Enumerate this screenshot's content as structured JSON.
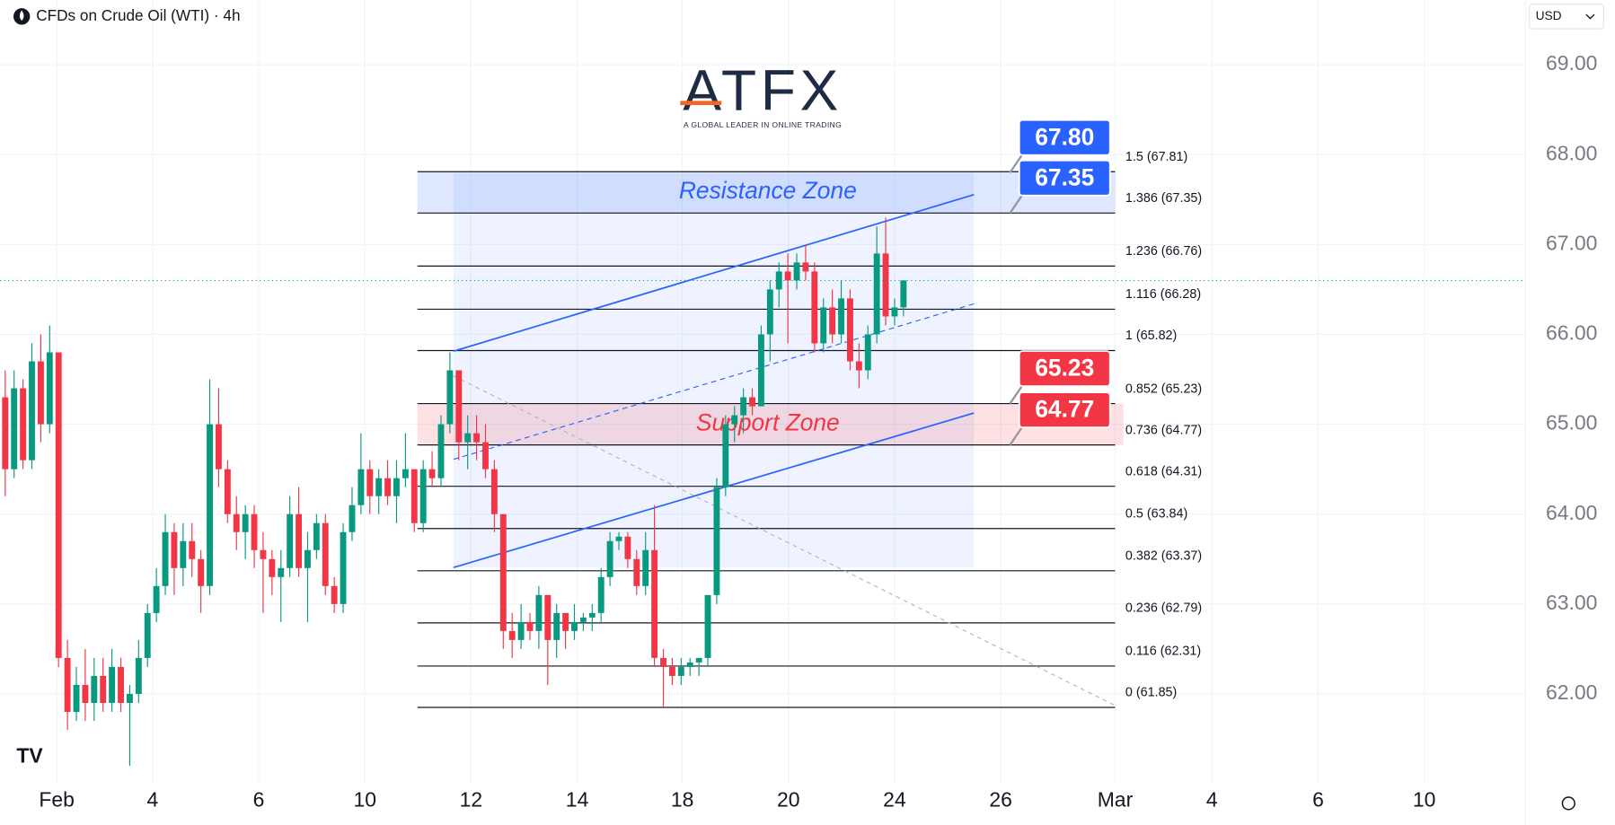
{
  "chart_data": {
    "type": "candlestick",
    "title": "CFDs on Crude Oil (WTI) · 4h",
    "currency": "USD",
    "logo": {
      "brand": "ATFX",
      "tagline": "A GLOBAL LEADER IN ONLINE TRADING"
    },
    "up_color": "#089981",
    "down_color": "#f23645",
    "ylim": [
      61.0,
      69.72
    ],
    "yticks": [
      {
        "value": 62,
        "label": "62.00"
      },
      {
        "value": 63,
        "label": "63.00"
      },
      {
        "value": 64,
        "label": "64.00"
      },
      {
        "value": 65,
        "label": "65.00"
      },
      {
        "value": 66,
        "label": "66.00"
      },
      {
        "value": 67,
        "label": "67.00"
      },
      {
        "value": 68,
        "label": "68.00"
      },
      {
        "value": 69,
        "label": "69.00"
      }
    ],
    "categories": [
      "Feb",
      "4",
      "6",
      "10",
      "12",
      "14",
      "18",
      "20",
      "24",
      "26",
      "Mar",
      "4",
      "6",
      "10"
    ],
    "grid": true,
    "ohlc": [
      [
        65.3,
        65.6,
        64.2,
        64.5
      ],
      [
        64.5,
        65.6,
        64.4,
        65.4
      ],
      [
        65.4,
        65.5,
        64.5,
        64.6
      ],
      [
        64.6,
        65.9,
        64.5,
        65.7
      ],
      [
        65.7,
        66.0,
        64.8,
        65.0
      ],
      [
        65.0,
        66.1,
        64.9,
        65.8
      ],
      [
        65.8,
        65.8,
        62.3,
        62.4
      ],
      [
        62.4,
        62.6,
        61.6,
        61.8
      ],
      [
        61.8,
        62.3,
        61.7,
        62.1
      ],
      [
        62.1,
        62.5,
        61.7,
        61.9
      ],
      [
        61.9,
        62.4,
        61.7,
        62.2
      ],
      [
        62.2,
        62.4,
        61.8,
        61.9
      ],
      [
        61.9,
        62.5,
        61.8,
        62.3
      ],
      [
        62.3,
        62.4,
        61.8,
        61.9
      ],
      [
        61.9,
        62.1,
        61.2,
        62.0
      ],
      [
        62.0,
        62.6,
        61.9,
        62.4
      ],
      [
        62.4,
        63.0,
        62.3,
        62.9
      ],
      [
        62.9,
        63.4,
        62.8,
        63.2
      ],
      [
        63.2,
        64.0,
        63.1,
        63.8
      ],
      [
        63.8,
        63.9,
        63.1,
        63.4
      ],
      [
        63.4,
        63.9,
        63.2,
        63.7
      ],
      [
        63.7,
        63.9,
        63.3,
        63.5
      ],
      [
        63.5,
        63.6,
        62.9,
        63.2
      ],
      [
        63.2,
        65.5,
        63.1,
        65.0
      ],
      [
        65.0,
        65.4,
        64.3,
        64.5
      ],
      [
        64.5,
        64.6,
        63.9,
        64.0
      ],
      [
        64.0,
        64.2,
        63.6,
        63.8
      ],
      [
        63.8,
        64.1,
        63.5,
        64.0
      ],
      [
        64.0,
        64.1,
        63.4,
        63.6
      ],
      [
        63.6,
        63.8,
        62.9,
        63.5
      ],
      [
        63.5,
        63.6,
        63.1,
        63.3
      ],
      [
        63.3,
        63.6,
        62.8,
        63.4
      ],
      [
        63.4,
        64.2,
        63.3,
        64.0
      ],
      [
        64.0,
        64.3,
        63.3,
        63.4
      ],
      [
        63.4,
        63.8,
        62.8,
        63.6
      ],
      [
        63.6,
        64.0,
        63.5,
        63.9
      ],
      [
        63.9,
        64.0,
        63.1,
        63.2
      ],
      [
        63.2,
        63.3,
        62.9,
        63.0
      ],
      [
        63.0,
        63.9,
        62.9,
        63.8
      ],
      [
        63.8,
        64.3,
        63.7,
        64.1
      ],
      [
        64.1,
        64.9,
        64.0,
        64.5
      ],
      [
        64.5,
        64.6,
        64.0,
        64.2
      ],
      [
        64.2,
        64.5,
        64.0,
        64.4
      ],
      [
        64.4,
        64.6,
        64.1,
        64.2
      ],
      [
        64.2,
        64.6,
        63.9,
        64.4
      ],
      [
        64.4,
        64.9,
        64.3,
        64.5
      ],
      [
        64.5,
        64.5,
        63.8,
        63.9
      ],
      [
        63.9,
        64.6,
        63.8,
        64.5
      ],
      [
        64.5,
        64.7,
        64.3,
        64.4
      ],
      [
        64.4,
        65.1,
        64.3,
        65.0
      ],
      [
        65.0,
        65.8,
        64.9,
        65.6
      ],
      [
        65.6,
        65.6,
        64.6,
        64.8
      ],
      [
        64.8,
        65.1,
        64.5,
        64.9
      ],
      [
        64.9,
        65.1,
        64.6,
        64.8
      ],
      [
        64.8,
        65.0,
        64.4,
        64.5
      ],
      [
        64.5,
        64.6,
        63.8,
        64.0
      ],
      [
        64.0,
        64.0,
        62.5,
        62.7
      ],
      [
        62.7,
        62.9,
        62.4,
        62.6
      ],
      [
        62.6,
        63.0,
        62.5,
        62.8
      ],
      [
        62.8,
        62.9,
        62.6,
        62.7
      ],
      [
        62.7,
        63.2,
        62.5,
        63.1
      ],
      [
        63.1,
        63.1,
        62.1,
        62.6
      ],
      [
        62.6,
        63.0,
        62.4,
        62.9
      ],
      [
        62.9,
        62.9,
        62.5,
        62.7
      ],
      [
        62.7,
        63.0,
        62.6,
        62.8
      ],
      [
        62.8,
        62.9,
        62.7,
        62.85
      ],
      [
        62.85,
        63.0,
        62.7,
        62.9
      ],
      [
        62.9,
        63.4,
        62.8,
        63.3
      ],
      [
        63.3,
        63.8,
        63.2,
        63.7
      ],
      [
        63.7,
        63.8,
        63.6,
        63.75
      ],
      [
        63.75,
        63.8,
        63.4,
        63.5
      ],
      [
        63.5,
        63.6,
        63.1,
        63.2
      ],
      [
        63.2,
        63.8,
        63.1,
        63.6
      ],
      [
        63.6,
        64.1,
        62.3,
        62.4
      ],
      [
        62.4,
        62.5,
        61.85,
        62.3
      ],
      [
        62.3,
        62.4,
        62.1,
        62.2
      ],
      [
        62.2,
        62.4,
        62.1,
        62.3
      ],
      [
        62.3,
        62.4,
        62.2,
        62.35
      ],
      [
        62.35,
        62.4,
        62.2,
        62.4
      ],
      [
        62.4,
        63.1,
        62.3,
        63.1
      ],
      [
        63.1,
        64.4,
        63.0,
        64.3
      ],
      [
        64.3,
        65.1,
        64.2,
        65.0
      ],
      [
        65.0,
        65.2,
        64.8,
        65.1
      ],
      [
        65.1,
        65.4,
        64.9,
        65.3
      ],
      [
        65.3,
        65.4,
        65.1,
        65.2
      ],
      [
        65.2,
        66.1,
        65.2,
        66.0
      ],
      [
        66.0,
        66.6,
        65.7,
        66.5
      ],
      [
        66.5,
        66.8,
        66.3,
        66.7
      ],
      [
        66.7,
        66.9,
        65.9,
        66.6
      ],
      [
        66.6,
        66.9,
        66.5,
        66.8
      ],
      [
        66.8,
        67.0,
        66.6,
        66.7
      ],
      [
        66.7,
        66.8,
        65.8,
        65.9
      ],
      [
        65.9,
        66.4,
        65.8,
        66.3
      ],
      [
        66.3,
        66.5,
        65.9,
        66.0
      ],
      [
        66.0,
        66.6,
        65.9,
        66.4
      ],
      [
        66.4,
        66.5,
        65.6,
        65.7
      ],
      [
        65.7,
        65.9,
        65.4,
        65.6
      ],
      [
        65.6,
        66.1,
        65.5,
        66.0
      ],
      [
        66.0,
        67.2,
        65.9,
        66.9
      ],
      [
        66.9,
        67.3,
        66.1,
        66.2
      ],
      [
        66.2,
        66.4,
        66.1,
        66.3
      ],
      [
        66.3,
        66.6,
        66.2,
        66.6
      ]
    ],
    "fib_levels": [
      {
        "value": 67.81,
        "label": "1.5 (67.81)"
      },
      {
        "value": 67.35,
        "label": "1.386 (67.35)"
      },
      {
        "value": 66.76,
        "label": "1.236 (66.76)"
      },
      {
        "value": 66.28,
        "label": "1.116 (66.28)"
      },
      {
        "value": 65.82,
        "label": "1 (65.82)"
      },
      {
        "value": 65.23,
        "label": "0.852 (65.23)"
      },
      {
        "value": 64.77,
        "label": "0.736 (64.77)"
      },
      {
        "value": 64.31,
        "label": "0.618 (64.31)"
      },
      {
        "value": 63.84,
        "label": "0.5 (63.84)"
      },
      {
        "value": 63.37,
        "label": "0.382 (63.37)"
      },
      {
        "value": 62.79,
        "label": "0.236 (62.79)"
      },
      {
        "value": 62.31,
        "label": "0.116 (62.31)"
      },
      {
        "value": 61.85,
        "label": "0 (61.85)"
      }
    ],
    "zones": [
      {
        "name": "Resistance Zone",
        "low": 67.35,
        "high": 67.81,
        "color": "#2962ff",
        "text_color": "#2962ff"
      },
      {
        "name": "Support Zone",
        "low": 64.77,
        "high": 65.23,
        "color": "#f23645",
        "text_color": "#f23645"
      }
    ],
    "price_badges": [
      {
        "value": 67.8,
        "label": "67.80",
        "color": "#2962ff"
      },
      {
        "value": 67.35,
        "label": "67.35",
        "color": "#2962ff"
      },
      {
        "value": 65.23,
        "label": "65.23",
        "color": "#f23645"
      },
      {
        "value": 64.77,
        "label": "64.77",
        "color": "#f23645"
      }
    ]
  }
}
